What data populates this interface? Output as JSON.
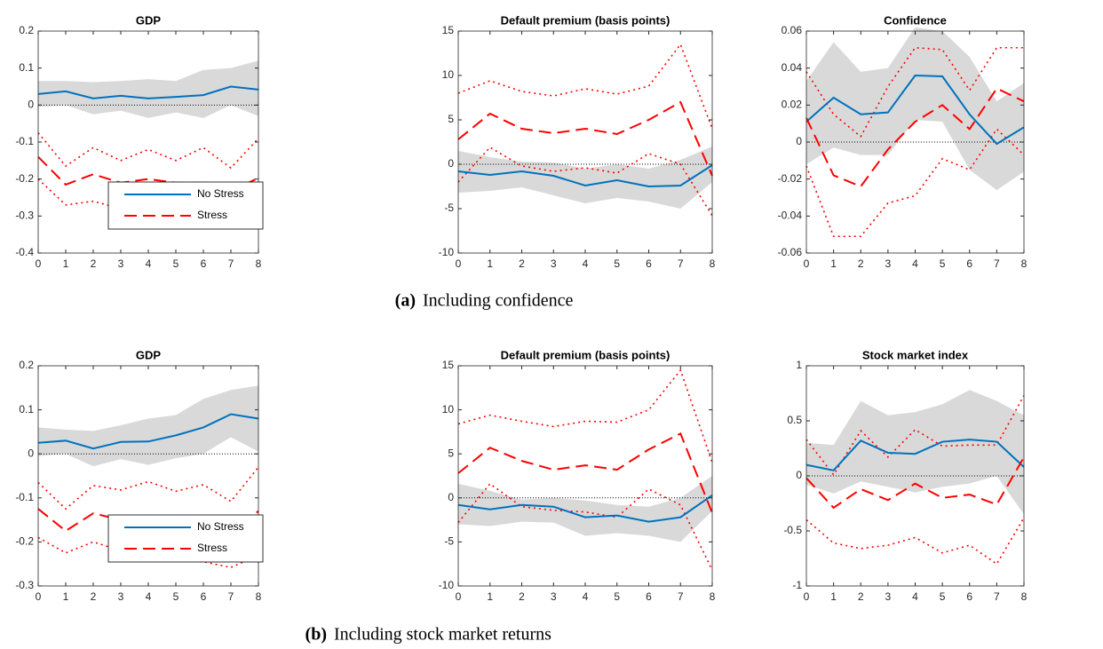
{
  "chart_data": [
    {
      "type": "line",
      "title": "GDP",
      "x": [
        0,
        1,
        2,
        3,
        4,
        5,
        6,
        7,
        8
      ],
      "xlim": [
        0,
        8
      ],
      "xticks": [
        0,
        1,
        2,
        3,
        4,
        5,
        6,
        7,
        8
      ],
      "ylim": [
        -0.4,
        0.2
      ],
      "yticks": [
        -0.4,
        -0.3,
        -0.2,
        -0.1,
        0,
        0.1,
        0.2
      ],
      "reference_line": 0,
      "legend": "south",
      "series": [
        {
          "name": "No Stress",
          "color": "#0072bd",
          "style": "solid",
          "values": [
            0.03,
            0.037,
            0.018,
            0.025,
            0.018,
            0.022,
            0.027,
            0.05,
            0.042
          ],
          "band": {
            "color": "#d9d9d9",
            "style": "area",
            "upper": [
              0.065,
              0.065,
              0.062,
              0.065,
              0.07,
              0.065,
              0.095,
              0.1,
              0.12
            ],
            "lower": [
              -0.005,
              0.0,
              -0.025,
              -0.015,
              -0.035,
              -0.02,
              -0.035,
              0.0,
              -0.03
            ]
          }
        },
        {
          "name": "Stress",
          "color": "#ff0000",
          "style": "dashed",
          "values": [
            -0.14,
            -0.215,
            -0.187,
            -0.21,
            -0.2,
            -0.21,
            -0.21,
            -0.233,
            -0.197
          ],
          "band": {
            "color": "#ff0000",
            "style": "dotted",
            "upper": [
              -0.075,
              -0.165,
              -0.115,
              -0.15,
              -0.12,
              -0.15,
              -0.115,
              -0.17,
              -0.09
            ],
            "lower": [
              -0.2,
              -0.27,
              -0.26,
              -0.28,
              -0.29,
              -0.3,
              -0.3,
              -0.3,
              -0.3
            ]
          }
        }
      ]
    },
    {
      "type": "line",
      "title": "Default premium (basis points)",
      "x": [
        0,
        1,
        2,
        3,
        4,
        5,
        6,
        7,
        8
      ],
      "xlim": [
        0,
        8
      ],
      "xticks": [
        0,
        1,
        2,
        3,
        4,
        5,
        6,
        7,
        8
      ],
      "ylim": [
        -10,
        15
      ],
      "yticks": [
        -10,
        -5,
        0,
        5,
        10,
        15
      ],
      "reference_line": 0,
      "series": [
        {
          "color": "#0072bd",
          "style": "solid",
          "values": [
            -0.8,
            -1.2,
            -0.8,
            -1.3,
            -2.4,
            -1.8,
            -2.5,
            -2.4,
            -0.1
          ],
          "band": {
            "color": "#d9d9d9",
            "style": "area",
            "upper": [
              1.5,
              0.8,
              0.3,
              0.2,
              -0.5,
              0,
              -0.5,
              0.5,
              2
            ],
            "lower": [
              -3.2,
              -3,
              -2.6,
              -3.5,
              -4.4,
              -3.8,
              -4.2,
              -5,
              -2
            ]
          }
        },
        {
          "color": "#ff0000",
          "style": "dashed",
          "values": [
            2.8,
            5.7,
            4,
            3.5,
            4,
            3.4,
            5,
            7,
            -1.3
          ],
          "band": {
            "color": "#ff0000",
            "style": "dotted",
            "upper": [
              8,
              9.4,
              8.2,
              7.7,
              8.5,
              7.9,
              8.8,
              13.5,
              4
            ],
            "lower": [
              -2,
              1.9,
              -0.2,
              -0.8,
              -0.4,
              -1,
              1.2,
              0,
              -5.8
            ]
          }
        }
      ]
    },
    {
      "type": "line",
      "title": "Confidence",
      "x": [
        0,
        1,
        2,
        3,
        4,
        5,
        6,
        7,
        8
      ],
      "xlim": [
        0,
        8
      ],
      "xticks": [
        0,
        1,
        2,
        3,
        4,
        5,
        6,
        7,
        8
      ],
      "ylim": [
        -0.06,
        0.06
      ],
      "yticks": [
        -0.06,
        -0.04,
        -0.02,
        0,
        0.02,
        0.04,
        0.06
      ],
      "reference_line": 0,
      "series": [
        {
          "color": "#0072bd",
          "style": "solid",
          "values": [
            0.011,
            0.024,
            0.015,
            0.016,
            0.036,
            0.0355,
            0.015,
            -0.001,
            0.008
          ],
          "band": {
            "color": "#d9d9d9",
            "style": "area",
            "upper": [
              0.033,
              0.054,
              0.038,
              0.04,
              0.062,
              0.06,
              0.046,
              0.022,
              0.032
            ],
            "lower": [
              -0.012,
              -0.003,
              -0.007,
              -0.007,
              0.012,
              0.011,
              -0.015,
              -0.026,
              -0.016
            ]
          }
        },
        {
          "color": "#ff0000",
          "style": "dashed",
          "values": [
            0.013,
            -0.018,
            -0.024,
            -0.004,
            0.011,
            0.02,
            0.007,
            0.029,
            0.022
          ],
          "band": {
            "color": "#ff0000",
            "style": "dotted",
            "upper": [
              0.038,
              0.015,
              0.003,
              0.03,
              0.051,
              0.05,
              0.028,
              0.051,
              0.051
            ],
            "lower": [
              -0.013,
              -0.051,
              -0.051,
              -0.033,
              -0.029,
              -0.009,
              -0.015,
              0.007,
              -0.007
            ]
          }
        }
      ]
    },
    {
      "type": "line",
      "title": "GDP",
      "x": [
        0,
        1,
        2,
        3,
        4,
        5,
        6,
        7,
        8
      ],
      "xlim": [
        0,
        8
      ],
      "xticks": [
        0,
        1,
        2,
        3,
        4,
        5,
        6,
        7,
        8
      ],
      "ylim": [
        -0.3,
        0.2
      ],
      "yticks": [
        -0.3,
        -0.2,
        -0.1,
        0,
        0.1,
        0.2
      ],
      "reference_line": 0,
      "legend": "south",
      "series": [
        {
          "name": "No Stress",
          "color": "#0072bd",
          "style": "solid",
          "values": [
            0.025,
            0.03,
            0.012,
            0.027,
            0.028,
            0.042,
            0.06,
            0.09,
            0.08
          ],
          "band": {
            "color": "#d9d9d9",
            "style": "area",
            "upper": [
              0.06,
              0.055,
              0.052,
              0.065,
              0.08,
              0.088,
              0.125,
              0.145,
              0.155
            ],
            "lower": [
              -0.005,
              0,
              -0.028,
              -0.012,
              -0.025,
              -0.01,
              0,
              0.038,
              0.005
            ]
          }
        },
        {
          "name": "Stress",
          "color": "#ff0000",
          "style": "dashed",
          "values": [
            -0.125,
            -0.175,
            -0.135,
            -0.15,
            -0.14,
            -0.16,
            -0.165,
            -0.182,
            -0.13
          ],
          "band": {
            "color": "#ff0000",
            "style": "dotted",
            "upper": [
              -0.065,
              -0.125,
              -0.072,
              -0.082,
              -0.063,
              -0.085,
              -0.07,
              -0.108,
              -0.03
            ],
            "lower": [
              -0.19,
              -0.225,
              -0.2,
              -0.22,
              -0.22,
              -0.24,
              -0.245,
              -0.258,
              -0.23
            ]
          }
        }
      ]
    },
    {
      "type": "line",
      "title": "Default premium (basis points)",
      "x": [
        0,
        1,
        2,
        3,
        4,
        5,
        6,
        7,
        8
      ],
      "xlim": [
        0,
        8
      ],
      "xticks": [
        0,
        1,
        2,
        3,
        4,
        5,
        6,
        7,
        8
      ],
      "ylim": [
        -10,
        15
      ],
      "yticks": [
        -10,
        -5,
        0,
        5,
        10,
        15
      ],
      "reference_line": 0,
      "series": [
        {
          "color": "#0072bd",
          "style": "solid",
          "values": [
            -0.8,
            -1.3,
            -0.8,
            -1,
            -2.2,
            -2,
            -2.7,
            -2.2,
            0.3
          ],
          "band": {
            "color": "#d9d9d9",
            "style": "area",
            "upper": [
              1.6,
              0.8,
              -0.2,
              0,
              -0.3,
              -0.8,
              -1,
              0,
              2.5
            ],
            "lower": [
              -3,
              -3.2,
              -2.7,
              -2.8,
              -4.3,
              -4,
              -4.3,
              -5,
              -1.5
            ]
          }
        },
        {
          "color": "#ff0000",
          "style": "dashed",
          "values": [
            2.8,
            5.7,
            4.2,
            3.2,
            3.7,
            3.2,
            5.5,
            7.3,
            -1.7
          ],
          "band": {
            "color": "#ff0000",
            "style": "dotted",
            "upper": [
              8.4,
              9.4,
              8.7,
              8.1,
              8.7,
              8.6,
              10,
              14.5,
              4
            ],
            "lower": [
              -2.8,
              1.6,
              -1,
              -1.4,
              -1.6,
              -2.2,
              1,
              -0.8,
              -8.2
            ]
          }
        }
      ]
    },
    {
      "type": "line",
      "title": "Stock market index",
      "x": [
        0,
        1,
        2,
        3,
        4,
        5,
        6,
        7,
        8
      ],
      "xlim": [
        0,
        8
      ],
      "xticks": [
        0,
        1,
        2,
        3,
        4,
        5,
        6,
        7,
        8
      ],
      "ylim": [
        -1,
        1
      ],
      "yticks": [
        -1,
        -0.5,
        0,
        0.5,
        1
      ],
      "reference_line": 0,
      "series": [
        {
          "color": "#0072bd",
          "style": "solid",
          "values": [
            0.1,
            0.05,
            0.32,
            0.21,
            0.2,
            0.31,
            0.33,
            0.31,
            0.08
          ],
          "band": {
            "color": "#d9d9d9",
            "style": "area",
            "upper": [
              0.3,
              0.28,
              0.68,
              0.55,
              0.58,
              0.65,
              0.78,
              0.68,
              0.55
            ],
            "lower": [
              -0.08,
              -0.16,
              -0.05,
              -0.1,
              -0.15,
              -0.1,
              -0.07,
              0,
              -0.35
            ]
          }
        },
        {
          "color": "#ff0000",
          "style": "dashed",
          "values": [
            -0.02,
            -0.29,
            -0.12,
            -0.22,
            -0.07,
            -0.2,
            -0.17,
            -0.26,
            0.17
          ],
          "band": {
            "color": "#ff0000",
            "style": "dotted",
            "upper": [
              0.33,
              0.01,
              0.41,
              0.17,
              0.42,
              0.27,
              0.28,
              0.28,
              0.73
            ],
            "lower": [
              -0.4,
              -0.61,
              -0.66,
              -0.63,
              -0.56,
              -0.7,
              -0.63,
              -0.8,
              -0.38
            ]
          }
        }
      ]
    }
  ],
  "captions": [
    {
      "label": "(a)",
      "text": "Including confidence"
    },
    {
      "label": "(b)",
      "text": "Including stock market returns"
    }
  ]
}
